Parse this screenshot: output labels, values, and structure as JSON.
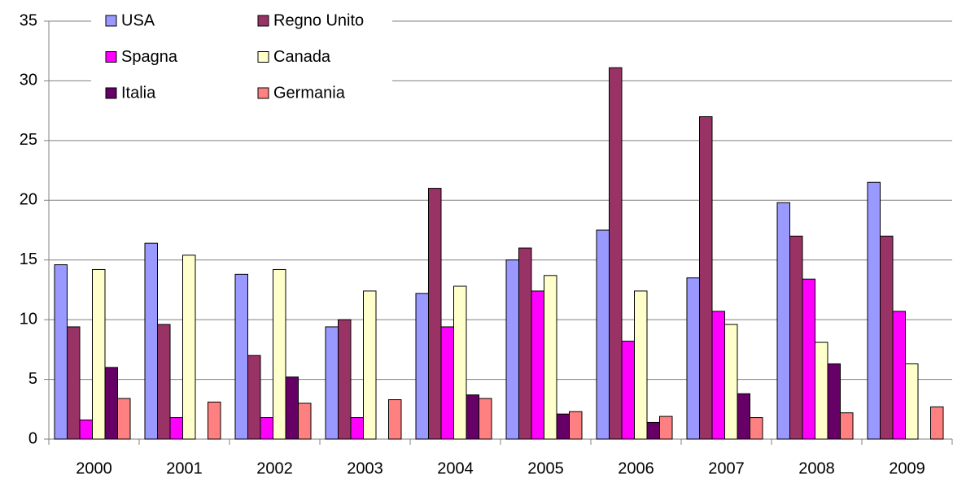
{
  "chart_data": {
    "type": "bar",
    "categories": [
      "2000",
      "2001",
      "2002",
      "2003",
      "2004",
      "2005",
      "2006",
      "2007",
      "2008",
      "2009"
    ],
    "series": [
      {
        "name": "USA",
        "color": "#9999ff",
        "values": [
          14.6,
          16.4,
          13.8,
          9.4,
          12.2,
          15.0,
          17.5,
          13.5,
          19.8,
          21.5
        ]
      },
      {
        "name": "Regno Unito",
        "color": "#993366",
        "values": [
          9.4,
          9.6,
          7.0,
          10.0,
          21.0,
          16.0,
          31.1,
          27.0,
          17.0,
          17.0
        ]
      },
      {
        "name": "Spagna",
        "color": "#ff00ff",
        "values": [
          1.6,
          1.8,
          1.8,
          1.8,
          9.4,
          12.4,
          8.2,
          10.7,
          13.4,
          10.7
        ]
      },
      {
        "name": "Canada",
        "color": "#ffffcc",
        "values": [
          14.2,
          15.4,
          14.2,
          12.4,
          12.8,
          13.7,
          12.4,
          9.6,
          8.1,
          6.3
        ]
      },
      {
        "name": "Italia",
        "color": "#660066",
        "values": [
          6.0,
          null,
          5.2,
          null,
          3.7,
          2.1,
          1.4,
          3.8,
          6.3,
          null
        ]
      },
      {
        "name": "Germania",
        "color": "#ff8080",
        "values": [
          3.4,
          3.1,
          3.0,
          3.3,
          3.4,
          2.3,
          1.9,
          1.8,
          2.2,
          2.7
        ]
      }
    ],
    "ylim": [
      0,
      35
    ],
    "yticks": [
      0,
      5,
      10,
      15,
      20,
      25,
      30,
      35
    ],
    "grid": true
  }
}
